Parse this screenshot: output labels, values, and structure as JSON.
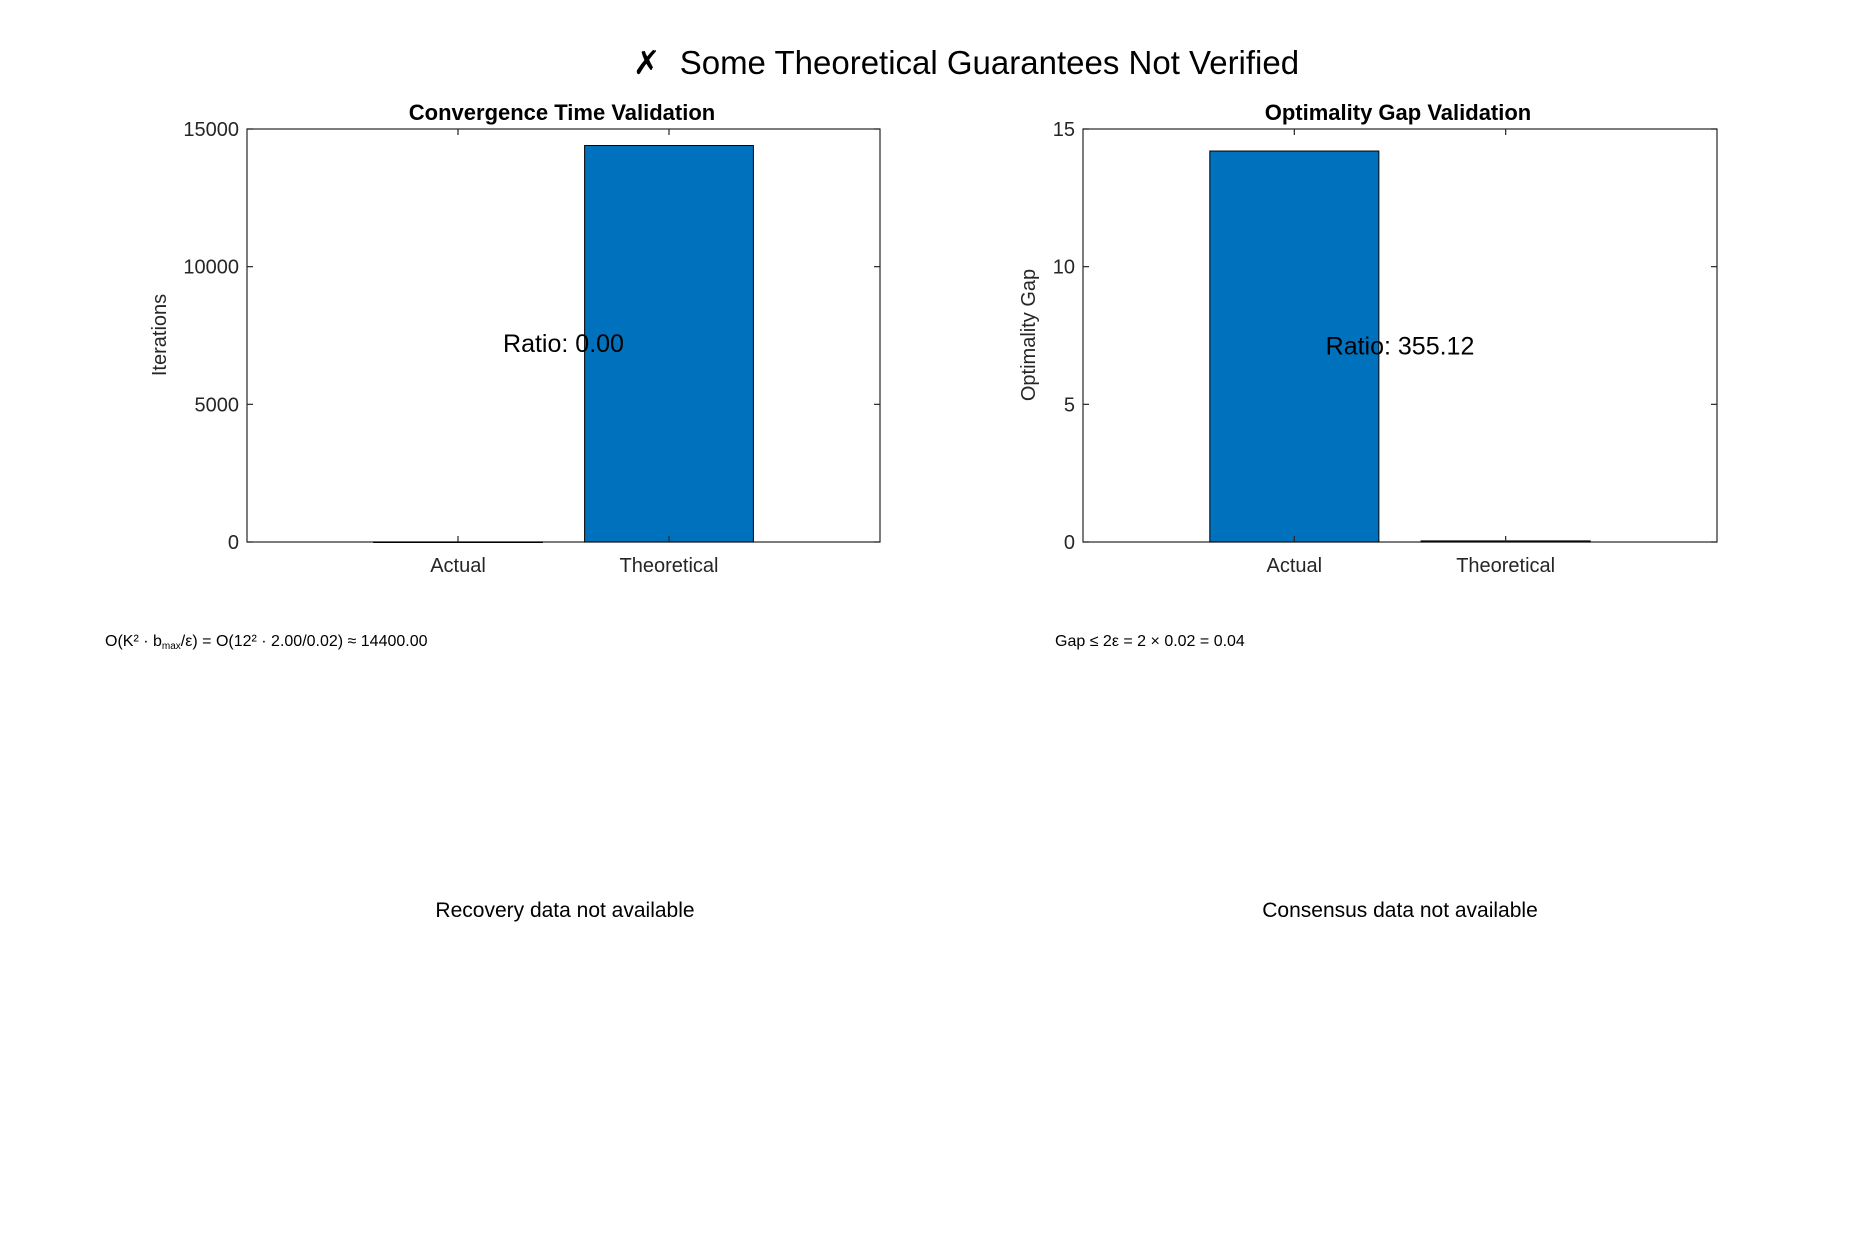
{
  "figure": {
    "title": "Some Theoretical Guarantees Not Verified",
    "status_icon": "x-mark-icon",
    "status_glyph": "✗"
  },
  "colors": {
    "bar": "#0072BD",
    "axis": "#262626",
    "text": "#000000"
  },
  "chart_data": [
    {
      "type": "bar",
      "title": "Convergence Time Validation",
      "ylabel": "Iterations",
      "xlabel": "",
      "categories": [
        "Actual",
        "Theoretical"
      ],
      "values": [
        0.5,
        14400
      ],
      "ylim": [
        0,
        15000
      ],
      "yticks": [
        0,
        5000,
        10000,
        15000
      ],
      "ytick_labels": [
        "0",
        "5000",
        "10000",
        "15000"
      ],
      "annotation": "Ratio: 0.00",
      "annotation_xy": [
        1.5,
        7200
      ],
      "grid": false,
      "legend": "none",
      "formula_prefix": "O(K² · b",
      "formula_sub": "max",
      "formula_suffix": "/ε) = O(12² · 2.00/0.02) ≈ 14400.00"
    },
    {
      "type": "bar",
      "title": "Optimality Gap Validation",
      "ylabel": "Optimality Gap",
      "xlabel": "",
      "categories": [
        "Actual",
        "Theoretical"
      ],
      "values": [
        14.2,
        0.04
      ],
      "ylim": [
        0,
        15
      ],
      "yticks": [
        0,
        5,
        10,
        15
      ],
      "ytick_labels": [
        "0",
        "5",
        "10",
        "15"
      ],
      "annotation": "Ratio: 355.12",
      "annotation_xy": [
        1.5,
        7.1
      ],
      "grid": false,
      "legend": "none",
      "formula": "Gap ≤ 2ε = 2 × 0.02 = 0.04"
    }
  ],
  "panels": {
    "recovery_message": "Recovery data not available",
    "consensus_message": "Consensus data not available"
  }
}
